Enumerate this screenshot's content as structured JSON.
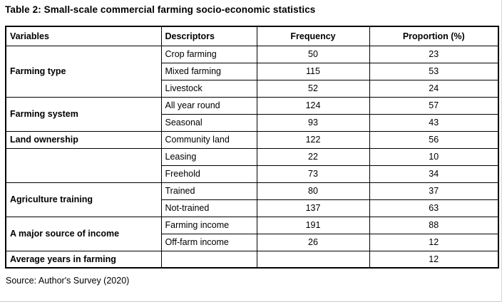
{
  "title": "Table 2: Small-scale commercial farming socio-economic statistics",
  "source": "Source: Author's Survey (2020)",
  "table": {
    "headers": {
      "variables": "Variables",
      "descriptors": "Descriptors",
      "frequency": "Frequency",
      "proportion": "Proportion (%)"
    },
    "rows": [
      {
        "variable": "Farming type",
        "descriptor": "Crop farming",
        "frequency": "50",
        "proportion": "23"
      },
      {
        "descriptor": "Mixed farming",
        "frequency": "115",
        "proportion": "53"
      },
      {
        "descriptor": "Livestock",
        "frequency": "52",
        "proportion": "24"
      },
      {
        "variable": "Farming system",
        "descriptor": "All year round",
        "frequency": "124",
        "proportion": "57"
      },
      {
        "descriptor": "Seasonal",
        "frequency": "93",
        "proportion": "43"
      },
      {
        "variable": "Land ownership",
        "descriptor": "Community land",
        "frequency": "122",
        "proportion": "56"
      },
      {
        "variable": "",
        "descriptor": "Leasing",
        "frequency": "22",
        "proportion": "10"
      },
      {
        "descriptor": "Freehold",
        "frequency": "73",
        "proportion": "34"
      },
      {
        "variable": "Agriculture training",
        "descriptor": "Trained",
        "frequency": "80",
        "proportion": "37"
      },
      {
        "descriptor": "Not-trained",
        "frequency": "137",
        "proportion": "63"
      },
      {
        "variable": "A major source of income",
        "descriptor": "Farming income",
        "frequency": "191",
        "proportion": "88"
      },
      {
        "descriptor": "Off-farm income",
        "frequency": "26",
        "proportion": "12"
      },
      {
        "variable": "Average years in farming",
        "descriptor": "",
        "frequency": "",
        "proportion": "12"
      }
    ]
  }
}
